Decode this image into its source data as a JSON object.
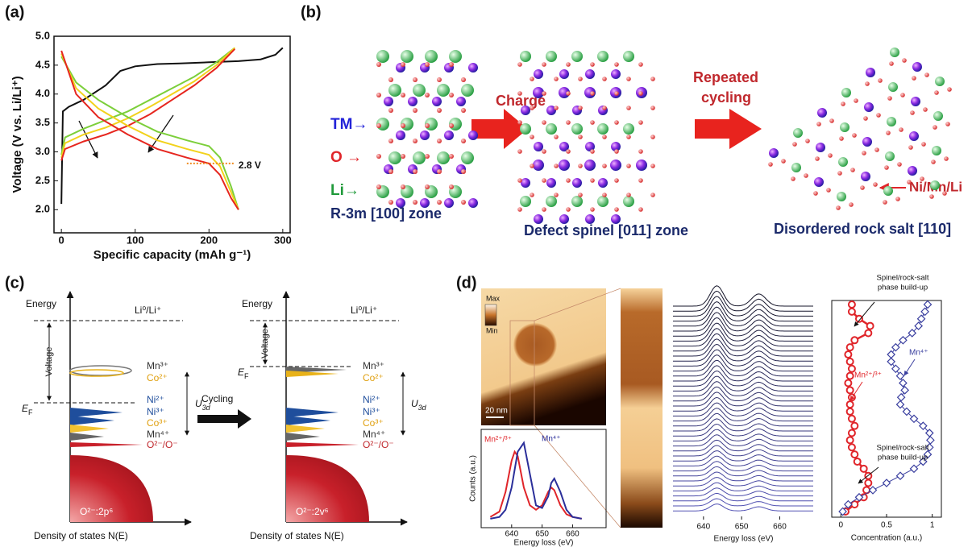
{
  "panel_labels": [
    "(a)",
    "(b)",
    "(c)",
    "(d)"
  ],
  "chart_data": [
    {
      "type": "line",
      "xlabel": "Specific capacity (mAh g⁻¹)",
      "ylabel": "Voltage (V vs. Li/Li⁺)",
      "xlim": [
        -10,
        310
      ],
      "ylim": [
        1.6,
        5.0
      ],
      "xticks": [
        0,
        100,
        200,
        300
      ],
      "yticks": [
        {
          "value": 2,
          "label": "2.0"
        },
        {
          "value": 2.5,
          "label": "2.5"
        },
        {
          "value": 3,
          "label": "3.0"
        },
        {
          "value": 3.5,
          "label": "3.5"
        },
        {
          "value": 4,
          "label": "4.0"
        },
        {
          "value": 4.5,
          "label": "4.5"
        },
        {
          "value": 5,
          "label": "5.0"
        }
      ],
      "annotations": [
        {
          "text": "2.8 V",
          "y": 2.8
        }
      ],
      "series": [
        {
          "color": "#111111",
          "x": [
            0,
            2,
            10,
            30,
            60,
            80,
            100,
            130,
            160,
            200,
            240,
            270,
            290,
            300
          ],
          "values": [
            2.1,
            3.7,
            3.78,
            3.9,
            4.15,
            4.4,
            4.48,
            4.52,
            4.53,
            4.55,
            4.57,
            4.6,
            4.68,
            4.8
          ]
        },
        {
          "color": "#7ccf3a",
          "x": [
            0,
            5,
            30,
            60,
            90,
            120,
            150,
            180,
            210,
            235
          ],
          "values": [
            2.95,
            3.25,
            3.4,
            3.55,
            3.7,
            3.9,
            4.1,
            4.3,
            4.55,
            4.8
          ]
        },
        {
          "color": "#f2d21c",
          "x": [
            0,
            5,
            30,
            60,
            90,
            120,
            150,
            180,
            210,
            235
          ],
          "values": [
            2.9,
            3.15,
            3.3,
            3.42,
            3.58,
            3.78,
            4.0,
            4.22,
            4.5,
            4.8
          ]
        },
        {
          "color": "#e6261f",
          "x": [
            0,
            5,
            30,
            60,
            90,
            120,
            150,
            180,
            210,
            235
          ],
          "values": [
            2.85,
            3.05,
            3.18,
            3.3,
            3.45,
            3.65,
            3.9,
            4.15,
            4.45,
            4.78
          ]
        },
        {
          "color": "#7ccf3a",
          "x": [
            0,
            20,
            50,
            90,
            130,
            170,
            200,
            215,
            230,
            240
          ],
          "values": [
            4.65,
            4.2,
            3.9,
            3.6,
            3.35,
            3.2,
            3.1,
            2.9,
            2.4,
            2.0
          ]
        },
        {
          "color": "#f2d21c",
          "x": [
            0,
            20,
            50,
            90,
            130,
            170,
            200,
            215,
            230,
            240
          ],
          "values": [
            4.7,
            4.1,
            3.75,
            3.45,
            3.2,
            3.05,
            2.95,
            2.75,
            2.3,
            2.0
          ]
        },
        {
          "color": "#e6261f",
          "x": [
            0,
            20,
            50,
            90,
            130,
            170,
            200,
            215,
            230,
            240
          ],
          "values": [
            4.75,
            4.0,
            3.6,
            3.3,
            3.05,
            2.9,
            2.8,
            2.6,
            2.2,
            2.0
          ]
        }
      ]
    },
    {
      "type": "line",
      "xlabel": "Energy loss (eV)",
      "ylabel": "Counts (a.u.)",
      "xlim": [
        630,
        671
      ],
      "ylim": [
        0,
        1.1
      ],
      "xticks": [
        640,
        650,
        660
      ],
      "x": [
        633,
        636,
        638,
        640,
        641,
        642,
        644,
        646,
        648,
        650,
        652,
        653,
        654,
        656,
        658,
        660,
        663
      ],
      "series": [
        {
          "name": "Mn²⁺/³⁺",
          "color": "#e0252a",
          "values": [
            0.12,
            0.18,
            0.4,
            0.75,
            0.85,
            0.8,
            0.45,
            0.25,
            0.2,
            0.25,
            0.4,
            0.45,
            0.42,
            0.25,
            0.15,
            0.12,
            0.1
          ]
        },
        {
          "name": "Mn⁴⁺",
          "color": "#2b2f9a",
          "values": [
            0.1,
            0.12,
            0.2,
            0.45,
            0.65,
            0.85,
            0.95,
            0.6,
            0.25,
            0.22,
            0.35,
            0.5,
            0.55,
            0.4,
            0.2,
            0.12,
            0.1
          ]
        }
      ]
    },
    {
      "type": "spectra",
      "xlabel": "Energy loss (eV)",
      "xlim": [
        632,
        669
      ],
      "xticks": [
        640,
        650,
        660
      ]
    },
    {
      "type": "profile",
      "xlabel": "Concentration (a.u.)",
      "xlim": [
        -0.1,
        1.1
      ],
      "xticks": [
        0,
        0.5,
        1
      ],
      "categories": [
        null,
        null,
        null,
        null,
        null,
        null,
        null,
        null,
        null,
        null,
        null,
        null,
        null,
        null,
        null,
        null,
        null,
        null,
        null,
        null,
        null,
        null,
        null,
        null,
        null,
        null,
        null,
        null,
        null,
        null
      ],
      "annotations": [
        {
          "lines": [
            "Spinel/rock-salt",
            "phase build-up"
          ]
        },
        {
          "lines": [
            "Spinel/rock-salt",
            "phase build-up"
          ]
        }
      ],
      "series": [
        {
          "name": "Mn²⁺/³⁺",
          "color": "#e0252a",
          "values": [
            0.12,
            0.12,
            0.2,
            0.32,
            0.3,
            0.15,
            0.1,
            0.08,
            0.1,
            0.12,
            0.1,
            0.08,
            0.1,
            0.12,
            0.1,
            0.1,
            0.12,
            0.15,
            0.12,
            0.1,
            0.12,
            0.15,
            0.18,
            0.25,
            0.3,
            0.3,
            0.28,
            0.25,
            0.15,
            0.05
          ]
        },
        {
          "name": "Mn⁴⁺",
          "color": "#3a3f9f",
          "values": [
            0.95,
            0.92,
            0.88,
            0.85,
            0.78,
            0.68,
            0.6,
            0.55,
            0.55,
            0.6,
            0.65,
            0.68,
            0.7,
            0.66,
            0.65,
            0.72,
            0.8,
            0.9,
            0.97,
            0.98,
            0.97,
            0.95,
            0.9,
            0.8,
            0.65,
            0.5,
            0.35,
            0.2,
            0.08,
            0.02
          ]
        }
      ]
    }
  ],
  "panel_b": {
    "charge": "Charge",
    "cycling": [
      "Repeated",
      "cycling"
    ],
    "tm": "TM→",
    "o": "O →",
    "li": "Li→",
    "zones": [
      "R-3m [100] zone",
      "Defect spinel [011] zone",
      "Disordered rock salt [110]"
    ],
    "nimnli": "Ni/Mn/Li"
  },
  "panel_c": {
    "cycling": "Cycling",
    "left": {
      "energy": "Energy",
      "li": "Li⁰/Li⁺",
      "voltage": "Voltage",
      "ef": {
        "symbol": "E",
        "sub": "F"
      },
      "levels": [
        "Mn³⁺",
        "Co²⁺",
        "Ni²⁺",
        "Ni³⁺",
        "Co³⁺",
        "Mn⁴⁺",
        "O²⁻/O⁻"
      ],
      "u": {
        "symbol": "U",
        "sub": "3d"
      },
      "band": "O²⁻:2p⁶",
      "xlabel": "Density of states N(E)"
    },
    "right": {
      "energy": "Energy",
      "li": "Li⁰/Li⁺",
      "voltage": "Voltage",
      "ef": {
        "symbol": "E",
        "sub": "F"
      },
      "levels": [
        "Mn³⁺",
        "Co²⁺",
        "Ni²⁺",
        "Ni³⁺",
        "Co³⁺",
        "Mn⁴⁺",
        "O²⁻/O⁻"
      ],
      "u": {
        "symbol": "U",
        "sub": "3d"
      },
      "band": "O²⁻:2v⁶",
      "xlabel": "Density of states N(E)"
    }
  },
  "panel_d": {
    "max": "Max",
    "min": "Min",
    "scale": "20 nm"
  }
}
